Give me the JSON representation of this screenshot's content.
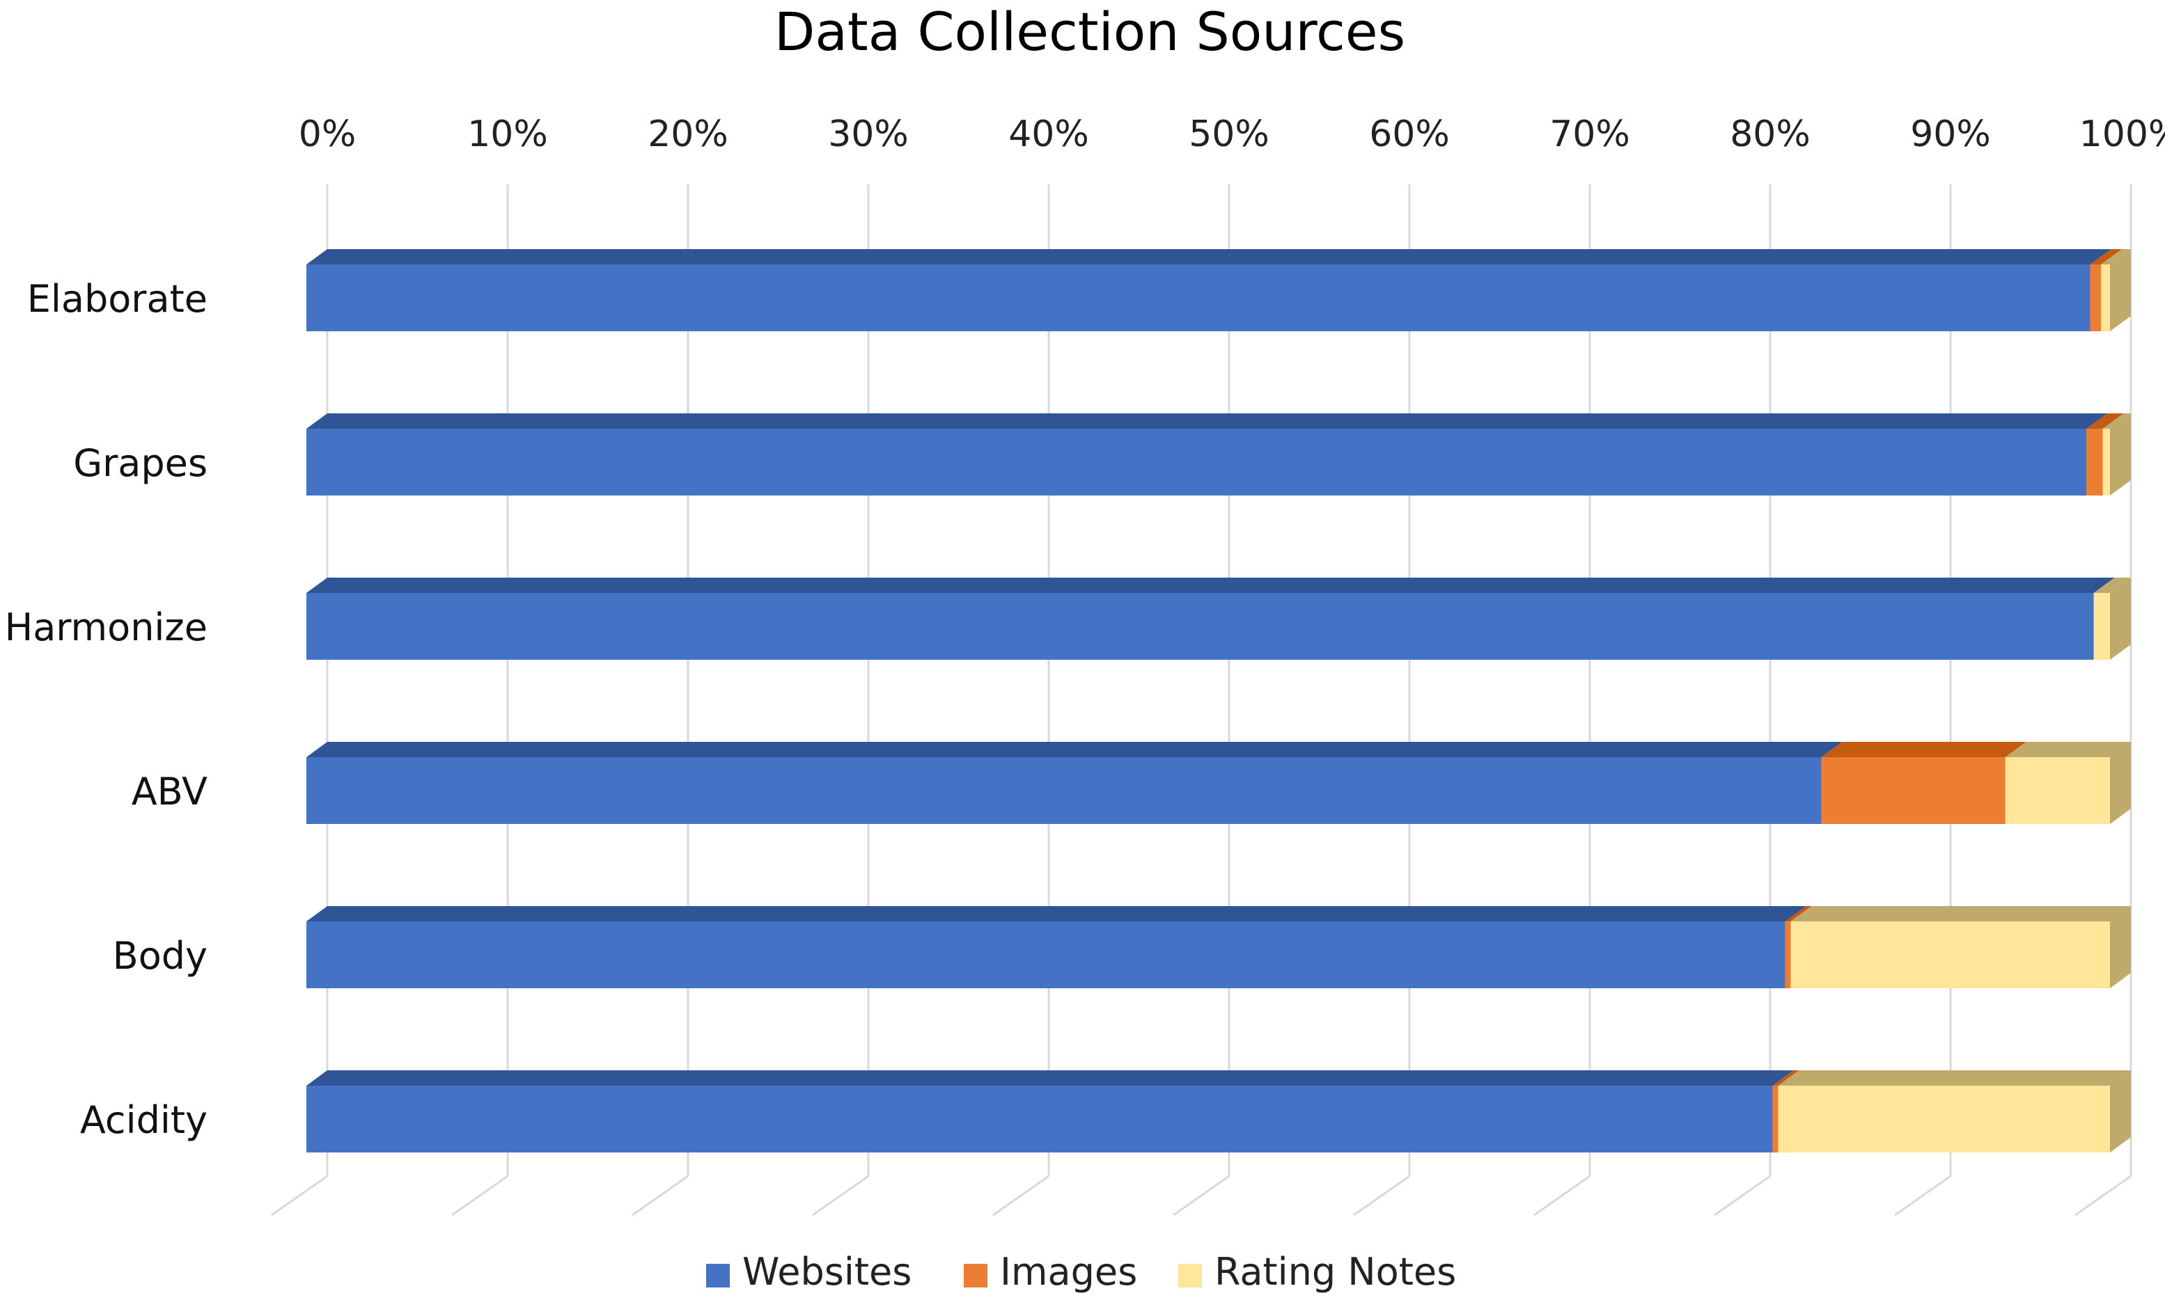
{
  "chart_data": {
    "type": "bar",
    "orientation": "horizontal",
    "stacked": "percent",
    "style": "3d",
    "title": "Data Collection Sources",
    "xlabel": "",
    "ylabel": "",
    "xlim": [
      0,
      100
    ],
    "x_ticks": [
      "0%",
      "10%",
      "20%",
      "30%",
      "40%",
      "50%",
      "60%",
      "70%",
      "80%",
      "90%",
      "100%"
    ],
    "x_axis_position": "top",
    "grid": true,
    "legend_position": "bottom",
    "categories": [
      "Elaborate",
      "Grapes",
      "Harmonize",
      "ABV",
      "Body",
      "Acidity"
    ],
    "series": [
      {
        "name": "Websites",
        "color": "#4472c4",
        "top_color": "#2f5597",
        "side_color": "#2f5597",
        "values": [
          98.9,
          98.7,
          99.1,
          84.0,
          82.0,
          81.3
        ]
      },
      {
        "name": "Images",
        "color": "#ed7d31",
        "top_color": "#c55a11",
        "side_color": "#c55a11",
        "values": [
          0.6,
          0.9,
          0.0,
          10.2,
          0.3,
          0.3
        ]
      },
      {
        "name": "Rating Notes",
        "color": "#ffe699",
        "top_color": "#bfa96b",
        "side_color": "#bfa96b",
        "values": [
          0.5,
          0.4,
          0.9,
          5.8,
          17.7,
          18.4
        ]
      }
    ]
  }
}
